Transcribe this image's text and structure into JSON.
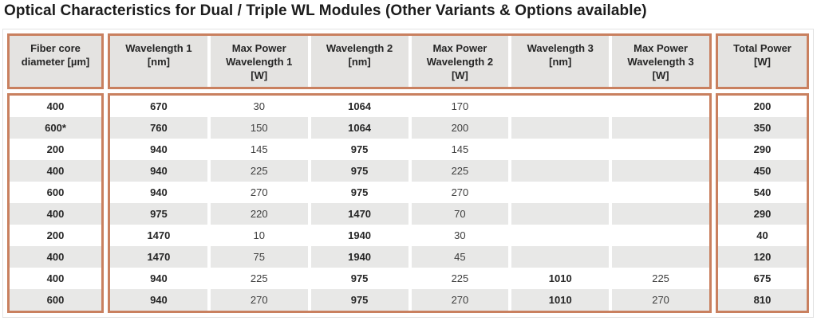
{
  "title": "Optical Characteristics for Dual / Triple WL Modules (Other Variants & Options available)",
  "colors": {
    "accent_border": "#c9805f",
    "header_background": "#e4e3e1",
    "row_stripe": "#e8e8e7",
    "text": "#262626"
  },
  "table": {
    "columns": [
      {
        "id": "fiber-core-diameter",
        "label": "Fiber core diameter [µm]",
        "label_lines": [
          "Fiber core",
          "diameter [µm]"
        ],
        "group": "left",
        "bold": true
      },
      {
        "id": "wavelength-1",
        "label": "Wavelength 1 [nm]",
        "label_lines": [
          "Wavelength 1",
          "[nm]"
        ],
        "group": "middle",
        "bold": true
      },
      {
        "id": "max-power-wl-1",
        "label": "Max Power Wavelength 1 [W]",
        "label_lines": [
          "Max Power",
          "Wavelength 1",
          "[W]"
        ],
        "group": "middle",
        "bold": false
      },
      {
        "id": "wavelength-2",
        "label": "Wavelength 2 [nm]",
        "label_lines": [
          "Wavelength 2",
          "[nm]"
        ],
        "group": "middle",
        "bold": true
      },
      {
        "id": "max-power-wl-2",
        "label": "Max Power Wavelength 2 [W]",
        "label_lines": [
          "Max Power",
          "Wavelength 2",
          "[W]"
        ],
        "group": "middle",
        "bold": false
      },
      {
        "id": "wavelength-3",
        "label": "Wavelength 3 [nm]",
        "label_lines": [
          "Wavelength 3",
          "[nm]"
        ],
        "group": "middle",
        "bold": true
      },
      {
        "id": "max-power-wl-3",
        "label": "Max Power Wavelength 3 [W]",
        "label_lines": [
          "Max Power",
          "Wavelength 3",
          "[W]"
        ],
        "group": "middle",
        "bold": false
      },
      {
        "id": "total-power",
        "label": "Total Power [W]",
        "label_lines": [
          "Total Power",
          "[W]"
        ],
        "group": "right",
        "bold": true
      }
    ],
    "rows": [
      [
        "400",
        "670",
        "30",
        "1064",
        "170",
        "",
        "",
        "200"
      ],
      [
        "600*",
        "760",
        "150",
        "1064",
        "200",
        "",
        "",
        "350"
      ],
      [
        "200",
        "940",
        "145",
        "975",
        "145",
        "",
        "",
        "290"
      ],
      [
        "400",
        "940",
        "225",
        "975",
        "225",
        "",
        "",
        "450"
      ],
      [
        "600",
        "940",
        "270",
        "975",
        "270",
        "",
        "",
        "540"
      ],
      [
        "400",
        "975",
        "220",
        "1470",
        "70",
        "",
        "",
        "290"
      ],
      [
        "200",
        "1470",
        "10",
        "1940",
        "30",
        "",
        "",
        "40"
      ],
      [
        "400",
        "1470",
        "75",
        "1940",
        "45",
        "",
        "",
        "120"
      ],
      [
        "400",
        "940",
        "225",
        "975",
        "225",
        "1010",
        "225",
        "675"
      ],
      [
        "600",
        "940",
        "270",
        "975",
        "270",
        "1010",
        "270",
        "810"
      ]
    ]
  }
}
